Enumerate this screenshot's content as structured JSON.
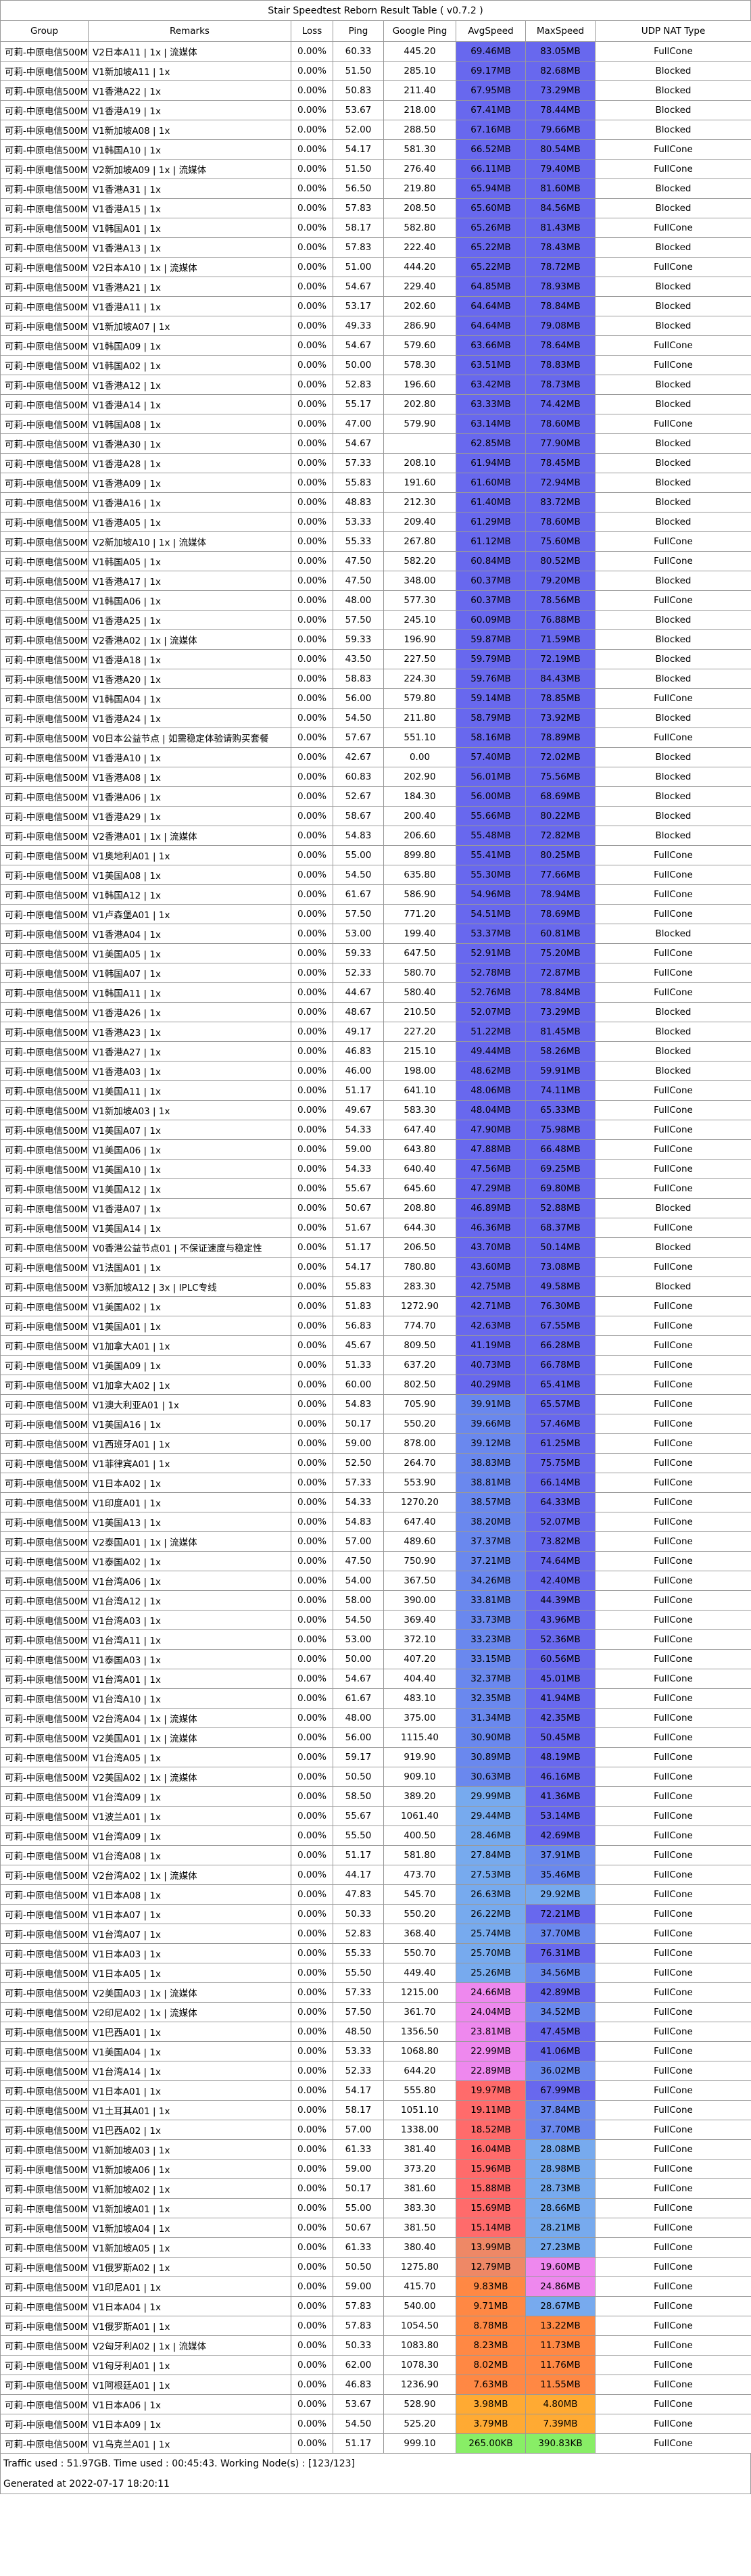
{
  "title": "Stair Speedtest Reborn Result Table ( v0.7.2 )",
  "headers": [
    "Group",
    "Remarks",
    "Loss",
    "Ping",
    "Google Ping",
    "AvgSpeed",
    "MaxSpeed",
    "UDP NAT Type"
  ],
  "colors": {
    "deep_blue": "#6666ee",
    "blue": "#6688ee",
    "light_blue": "#77aaee",
    "pink": "#ee88ee",
    "light_pink": "#eeaaee",
    "salmon": "#ee7777",
    "orange": "#ff8844",
    "green": "#88ee66",
    "orange2": "#ffaa44"
  },
  "rows": [
    [
      "可莉-中原电信500M",
      "V2日本A11 | 1x | 流媒体",
      "0.00%",
      "60.33",
      "445.20",
      "69.46MB",
      "83.05MB",
      "FullCone"
    ],
    [
      "可莉-中原电信500M",
      "V1新加坡A11 | 1x",
      "0.00%",
      "51.50",
      "285.10",
      "69.17MB",
      "82.68MB",
      "Blocked"
    ],
    [
      "可莉-中原电信500M",
      "V1香港A22 | 1x",
      "0.00%",
      "50.83",
      "211.40",
      "67.95MB",
      "73.29MB",
      "Blocked"
    ],
    [
      "可莉-中原电信500M",
      "V1香港A19 | 1x",
      "0.00%",
      "53.67",
      "218.00",
      "67.41MB",
      "78.44MB",
      "Blocked"
    ],
    [
      "可莉-中原电信500M",
      "V1新加坡A08 | 1x",
      "0.00%",
      "52.00",
      "288.50",
      "67.16MB",
      "79.66MB",
      "Blocked"
    ],
    [
      "可莉-中原电信500M",
      "V1韩国A10 | 1x",
      "0.00%",
      "54.17",
      "581.30",
      "66.52MB",
      "80.54MB",
      "FullCone"
    ],
    [
      "可莉-中原电信500M",
      "V2新加坡A09 | 1x | 流媒体",
      "0.00%",
      "51.50",
      "276.40",
      "66.11MB",
      "79.40MB",
      "FullCone"
    ],
    [
      "可莉-中原电信500M",
      "V1香港A31 | 1x",
      "0.00%",
      "56.50",
      "219.80",
      "65.94MB",
      "81.60MB",
      "Blocked"
    ],
    [
      "可莉-中原电信500M",
      "V1香港A15 | 1x",
      "0.00%",
      "57.83",
      "208.50",
      "65.60MB",
      "84.56MB",
      "Blocked"
    ],
    [
      "可莉-中原电信500M",
      "V1韩国A01 | 1x",
      "0.00%",
      "58.17",
      "582.80",
      "65.26MB",
      "81.43MB",
      "FullCone"
    ],
    [
      "可莉-中原电信500M",
      "V1香港A13 | 1x",
      "0.00%",
      "57.83",
      "222.40",
      "65.22MB",
      "78.43MB",
      "Blocked"
    ],
    [
      "可莉-中原电信500M",
      "V2日本A10 | 1x | 流媒体",
      "0.00%",
      "51.00",
      "444.20",
      "65.22MB",
      "78.72MB",
      "FullCone"
    ],
    [
      "可莉-中原电信500M",
      "V1香港A21 | 1x",
      "0.00%",
      "54.67",
      "229.40",
      "64.85MB",
      "78.93MB",
      "Blocked"
    ],
    [
      "可莉-中原电信500M",
      "V1香港A11 | 1x",
      "0.00%",
      "53.17",
      "202.60",
      "64.64MB",
      "78.84MB",
      "Blocked"
    ],
    [
      "可莉-中原电信500M",
      "V1新加坡A07 | 1x",
      "0.00%",
      "49.33",
      "286.90",
      "64.64MB",
      "79.08MB",
      "Blocked"
    ],
    [
      "可莉-中原电信500M",
      "V1韩国A09 | 1x",
      "0.00%",
      "54.67",
      "579.60",
      "63.66MB",
      "78.64MB",
      "FullCone"
    ],
    [
      "可莉-中原电信500M",
      "V1韩国A02 | 1x",
      "0.00%",
      "50.00",
      "578.30",
      "63.51MB",
      "78.83MB",
      "FullCone"
    ],
    [
      "可莉-中原电信500M",
      "V1香港A12 | 1x",
      "0.00%",
      "52.83",
      "196.60",
      "63.42MB",
      "78.73MB",
      "Blocked"
    ],
    [
      "可莉-中原电信500M",
      "V1香港A14 | 1x",
      "0.00%",
      "55.17",
      "202.80",
      "63.33MB",
      "74.42MB",
      "Blocked"
    ],
    [
      "可莉-中原电信500M",
      "V1韩国A08 | 1x",
      "0.00%",
      "47.00",
      "579.90",
      "63.14MB",
      "78.60MB",
      "FullCone"
    ],
    [
      "可莉-中原电信500M",
      "V1香港A30 | 1x",
      "0.00%",
      "54.67",
      "",
      "62.85MB",
      "77.90MB",
      "Blocked"
    ],
    [
      "可莉-中原电信500M",
      "V1香港A28 | 1x",
      "0.00%",
      "57.33",
      "208.10",
      "61.94MB",
      "78.45MB",
      "Blocked"
    ],
    [
      "可莉-中原电信500M",
      "V1香港A09 | 1x",
      "0.00%",
      "55.83",
      "191.60",
      "61.60MB",
      "72.94MB",
      "Blocked"
    ],
    [
      "可莉-中原电信500M",
      "V1香港A16 | 1x",
      "0.00%",
      "48.83",
      "212.30",
      "61.40MB",
      "83.72MB",
      "Blocked"
    ],
    [
      "可莉-中原电信500M",
      "V1香港A05 | 1x",
      "0.00%",
      "53.33",
      "209.40",
      "61.29MB",
      "78.60MB",
      "Blocked"
    ],
    [
      "可莉-中原电信500M",
      "V2新加坡A10 | 1x | 流媒体",
      "0.00%",
      "55.33",
      "267.80",
      "61.12MB",
      "75.60MB",
      "FullCone"
    ],
    [
      "可莉-中原电信500M",
      "V1韩国A05 | 1x",
      "0.00%",
      "47.50",
      "582.20",
      "60.84MB",
      "80.52MB",
      "FullCone"
    ],
    [
      "可莉-中原电信500M",
      "V1香港A17 | 1x",
      "0.00%",
      "47.50",
      "348.00",
      "60.37MB",
      "79.20MB",
      "Blocked"
    ],
    [
      "可莉-中原电信500M",
      "V1韩国A06 | 1x",
      "0.00%",
      "48.00",
      "577.30",
      "60.37MB",
      "78.56MB",
      "FullCone"
    ],
    [
      "可莉-中原电信500M",
      "V1香港A25 | 1x",
      "0.00%",
      "57.50",
      "245.10",
      "60.09MB",
      "76.88MB",
      "Blocked"
    ],
    [
      "可莉-中原电信500M",
      "V2香港A02 | 1x | 流媒体",
      "0.00%",
      "59.33",
      "196.90",
      "59.87MB",
      "71.59MB",
      "Blocked"
    ],
    [
      "可莉-中原电信500M",
      "V1香港A18 | 1x",
      "0.00%",
      "43.50",
      "227.50",
      "59.79MB",
      "72.19MB",
      "Blocked"
    ],
    [
      "可莉-中原电信500M",
      "V1香港A20 | 1x",
      "0.00%",
      "58.83",
      "224.30",
      "59.76MB",
      "84.43MB",
      "Blocked"
    ],
    [
      "可莉-中原电信500M",
      "V1韩国A04 | 1x",
      "0.00%",
      "56.00",
      "579.80",
      "59.14MB",
      "78.85MB",
      "FullCone"
    ],
    [
      "可莉-中原电信500M",
      "V1香港A24 | 1x",
      "0.00%",
      "54.50",
      "211.80",
      "58.79MB",
      "73.92MB",
      "Blocked"
    ],
    [
      "可莉-中原电信500M",
      "V0日本公益节点 | 如需稳定体验请购买套餐",
      "0.00%",
      "57.67",
      "551.10",
      "58.16MB",
      "78.89MB",
      "FullCone"
    ],
    [
      "可莉-中原电信500M",
      "V1香港A10 | 1x",
      "0.00%",
      "42.67",
      "0.00",
      "57.40MB",
      "72.02MB",
      "Blocked"
    ],
    [
      "可莉-中原电信500M",
      "V1香港A08 | 1x",
      "0.00%",
      "60.83",
      "202.90",
      "56.01MB",
      "75.56MB",
      "Blocked"
    ],
    [
      "可莉-中原电信500M",
      "V1香港A06 | 1x",
      "0.00%",
      "52.67",
      "184.30",
      "56.00MB",
      "68.69MB",
      "Blocked"
    ],
    [
      "可莉-中原电信500M",
      "V1香港A29 | 1x",
      "0.00%",
      "58.67",
      "200.40",
      "55.66MB",
      "80.22MB",
      "Blocked"
    ],
    [
      "可莉-中原电信500M",
      "V2香港A01 | 1x | 流媒体",
      "0.00%",
      "54.83",
      "206.60",
      "55.48MB",
      "72.82MB",
      "Blocked"
    ],
    [
      "可莉-中原电信500M",
      "V1奥地利A01 | 1x",
      "0.00%",
      "55.00",
      "899.80",
      "55.41MB",
      "80.25MB",
      "FullCone"
    ],
    [
      "可莉-中原电信500M",
      "V1美国A08 | 1x",
      "0.00%",
      "54.50",
      "635.80",
      "55.30MB",
      "77.66MB",
      "FullCone"
    ],
    [
      "可莉-中原电信500M",
      "V1韩国A12 | 1x",
      "0.00%",
      "61.67",
      "586.90",
      "54.96MB",
      "78.94MB",
      "FullCone"
    ],
    [
      "可莉-中原电信500M",
      "V1卢森堡A01 | 1x",
      "0.00%",
      "57.50",
      "771.20",
      "54.51MB",
      "78.69MB",
      "FullCone"
    ],
    [
      "可莉-中原电信500M",
      "V1香港A04 | 1x",
      "0.00%",
      "53.00",
      "199.40",
      "53.37MB",
      "60.81MB",
      "Blocked"
    ],
    [
      "可莉-中原电信500M",
      "V1美国A05 | 1x",
      "0.00%",
      "59.33",
      "647.50",
      "52.91MB",
      "75.20MB",
      "FullCone"
    ],
    [
      "可莉-中原电信500M",
      "V1韩国A07 | 1x",
      "0.00%",
      "52.33",
      "580.70",
      "52.78MB",
      "72.87MB",
      "FullCone"
    ],
    [
      "可莉-中原电信500M",
      "V1韩国A11 | 1x",
      "0.00%",
      "44.67",
      "580.40",
      "52.76MB",
      "78.84MB",
      "FullCone"
    ],
    [
      "可莉-中原电信500M",
      "V1香港A26 | 1x",
      "0.00%",
      "48.67",
      "210.50",
      "52.07MB",
      "73.29MB",
      "Blocked"
    ],
    [
      "可莉-中原电信500M",
      "V1香港A23 | 1x",
      "0.00%",
      "49.17",
      "227.20",
      "51.22MB",
      "81.45MB",
      "Blocked"
    ],
    [
      "可莉-中原电信500M",
      "V1香港A27 | 1x",
      "0.00%",
      "46.83",
      "215.10",
      "49.44MB",
      "58.26MB",
      "Blocked"
    ],
    [
      "可莉-中原电信500M",
      "V1香港A03 | 1x",
      "0.00%",
      "46.00",
      "198.00",
      "48.62MB",
      "59.91MB",
      "Blocked"
    ],
    [
      "可莉-中原电信500M",
      "V1美国A11 | 1x",
      "0.00%",
      "51.17",
      "641.10",
      "48.06MB",
      "74.11MB",
      "FullCone"
    ],
    [
      "可莉-中原电信500M",
      "V1新加坡A03 | 1x",
      "0.00%",
      "49.67",
      "583.30",
      "48.04MB",
      "65.33MB",
      "FullCone"
    ],
    [
      "可莉-中原电信500M",
      "V1美国A07 | 1x",
      "0.00%",
      "54.33",
      "647.40",
      "47.90MB",
      "75.98MB",
      "FullCone"
    ],
    [
      "可莉-中原电信500M",
      "V1美国A06 | 1x",
      "0.00%",
      "59.00",
      "643.80",
      "47.88MB",
      "66.48MB",
      "FullCone"
    ],
    [
      "可莉-中原电信500M",
      "V1美国A10 | 1x",
      "0.00%",
      "54.33",
      "640.40",
      "47.56MB",
      "69.25MB",
      "FullCone"
    ],
    [
      "可莉-中原电信500M",
      "V1美国A12 | 1x",
      "0.00%",
      "55.67",
      "645.60",
      "47.29MB",
      "69.80MB",
      "FullCone"
    ],
    [
      "可莉-中原电信500M",
      "V1香港A07 | 1x",
      "0.00%",
      "50.67",
      "208.80",
      "46.89MB",
      "52.88MB",
      "Blocked"
    ],
    [
      "可莉-中原电信500M",
      "V1美国A14 | 1x",
      "0.00%",
      "51.67",
      "644.30",
      "46.36MB",
      "68.37MB",
      "FullCone"
    ],
    [
      "可莉-中原电信500M",
      "V0香港公益节点01 | 不保证速度与稳定性",
      "0.00%",
      "51.17",
      "206.50",
      "43.70MB",
      "50.14MB",
      "Blocked"
    ],
    [
      "可莉-中原电信500M",
      "V1法国A01 | 1x",
      "0.00%",
      "54.17",
      "780.80",
      "43.60MB",
      "73.08MB",
      "FullCone"
    ],
    [
      "可莉-中原电信500M",
      "V3新加坡A12 | 3x | IPLC专线",
      "0.00%",
      "55.83",
      "283.30",
      "42.75MB",
      "49.58MB",
      "Blocked"
    ],
    [
      "可莉-中原电信500M",
      "V1美国A02 | 1x",
      "0.00%",
      "51.83",
      "1272.90",
      "42.71MB",
      "76.30MB",
      "FullCone"
    ],
    [
      "可莉-中原电信500M",
      "V1美国A01 | 1x",
      "0.00%",
      "56.83",
      "774.70",
      "42.63MB",
      "67.55MB",
      "FullCone"
    ],
    [
      "可莉-中原电信500M",
      "V1加拿大A01 | 1x",
      "0.00%",
      "45.67",
      "809.50",
      "41.19MB",
      "66.28MB",
      "FullCone"
    ],
    [
      "可莉-中原电信500M",
      "V1美国A09 | 1x",
      "0.00%",
      "51.33",
      "637.20",
      "40.73MB",
      "66.78MB",
      "FullCone"
    ],
    [
      "可莉-中原电信500M",
      "V1加拿大A02 | 1x",
      "0.00%",
      "60.00",
      "802.50",
      "40.29MB",
      "65.41MB",
      "FullCone"
    ],
    [
      "可莉-中原电信500M",
      "V1澳大利亚A01 | 1x",
      "0.00%",
      "54.83",
      "705.90",
      "39.91MB",
      "65.57MB",
      "FullCone"
    ],
    [
      "可莉-中原电信500M",
      "V1美国A16 | 1x",
      "0.00%",
      "50.17",
      "550.20",
      "39.66MB",
      "57.46MB",
      "FullCone"
    ],
    [
      "可莉-中原电信500M",
      "V1西班牙A01 | 1x",
      "0.00%",
      "59.00",
      "878.00",
      "39.12MB",
      "61.25MB",
      "FullCone"
    ],
    [
      "可莉-中原电信500M",
      "V1菲律宾A01 | 1x",
      "0.00%",
      "52.50",
      "264.70",
      "38.83MB",
      "75.75MB",
      "FullCone"
    ],
    [
      "可莉-中原电信500M",
      "V1日本A02 | 1x",
      "0.00%",
      "57.33",
      "553.90",
      "38.81MB",
      "66.14MB",
      "FullCone"
    ],
    [
      "可莉-中原电信500M",
      "V1印度A01 | 1x",
      "0.00%",
      "54.33",
      "1270.20",
      "38.57MB",
      "64.33MB",
      "FullCone"
    ],
    [
      "可莉-中原电信500M",
      "V1美国A13 | 1x",
      "0.00%",
      "54.83",
      "647.40",
      "38.20MB",
      "52.07MB",
      "FullCone"
    ],
    [
      "可莉-中原电信500M",
      "V2泰国A01 | 1x | 流媒体",
      "0.00%",
      "57.00",
      "489.60",
      "37.37MB",
      "73.82MB",
      "FullCone"
    ],
    [
      "可莉-中原电信500M",
      "V1泰国A02 | 1x",
      "0.00%",
      "47.50",
      "750.90",
      "37.21MB",
      "74.64MB",
      "FullCone"
    ],
    [
      "可莉-中原电信500M",
      "V1台湾A06 | 1x",
      "0.00%",
      "54.00",
      "367.50",
      "34.26MB",
      "42.40MB",
      "FullCone"
    ],
    [
      "可莉-中原电信500M",
      "V1台湾A12 | 1x",
      "0.00%",
      "58.00",
      "390.00",
      "33.81MB",
      "44.39MB",
      "FullCone"
    ],
    [
      "可莉-中原电信500M",
      "V1台湾A03 | 1x",
      "0.00%",
      "54.50",
      "369.40",
      "33.73MB",
      "43.96MB",
      "FullCone"
    ],
    [
      "可莉-中原电信500M",
      "V1台湾A11 | 1x",
      "0.00%",
      "53.00",
      "372.10",
      "33.23MB",
      "52.36MB",
      "FullCone"
    ],
    [
      "可莉-中原电信500M",
      "V1泰国A03 | 1x",
      "0.00%",
      "50.00",
      "407.20",
      "33.15MB",
      "60.56MB",
      "FullCone"
    ],
    [
      "可莉-中原电信500M",
      "V1台湾A01 | 1x",
      "0.00%",
      "54.67",
      "404.40",
      "32.37MB",
      "45.01MB",
      "FullCone"
    ],
    [
      "可莉-中原电信500M",
      "V1台湾A10 | 1x",
      "0.00%",
      "61.67",
      "483.10",
      "32.35MB",
      "41.94MB",
      "FullCone"
    ],
    [
      "可莉-中原电信500M",
      "V2台湾A04 | 1x | 流媒体",
      "0.00%",
      "48.00",
      "375.00",
      "31.34MB",
      "42.35MB",
      "FullCone"
    ],
    [
      "可莉-中原电信500M",
      "V2美国A01 | 1x | 流媒体",
      "0.00%",
      "56.00",
      "1115.40",
      "30.90MB",
      "50.45MB",
      "FullCone"
    ],
    [
      "可莉-中原电信500M",
      "V1台湾A05 | 1x",
      "0.00%",
      "59.17",
      "919.90",
      "30.89MB",
      "48.19MB",
      "FullCone"
    ],
    [
      "可莉-中原电信500M",
      "V2美国A02 | 1x | 流媒体",
      "0.00%",
      "50.50",
      "909.10",
      "30.63MB",
      "46.16MB",
      "FullCone"
    ],
    [
      "可莉-中原电信500M",
      "V1台湾A09 | 1x",
      "0.00%",
      "58.50",
      "389.20",
      "29.99MB",
      "41.36MB",
      "FullCone"
    ],
    [
      "可莉-中原电信500M",
      "V1波兰A01 | 1x",
      "0.00%",
      "55.67",
      "1061.40",
      "29.44MB",
      "53.14MB",
      "FullCone"
    ],
    [
      "可莉-中原电信500M",
      "V1台湾A09 | 1x",
      "0.00%",
      "55.50",
      "400.50",
      "28.46MB",
      "42.69MB",
      "FullCone"
    ],
    [
      "可莉-中原电信500M",
      "V1台湾A08 | 1x",
      "0.00%",
      "51.17",
      "581.80",
      "27.84MB",
      "37.91MB",
      "FullCone"
    ],
    [
      "可莉-中原电信500M",
      "V2台湾A02 | 1x | 流媒体",
      "0.00%",
      "44.17",
      "473.70",
      "27.53MB",
      "35.46MB",
      "FullCone"
    ],
    [
      "可莉-中原电信500M",
      "V1日本A08 | 1x",
      "0.00%",
      "47.83",
      "545.70",
      "26.63MB",
      "29.92MB",
      "FullCone"
    ],
    [
      "可莉-中原电信500M",
      "V1日本A07 | 1x",
      "0.00%",
      "50.33",
      "550.20",
      "26.22MB",
      "72.21MB",
      "FullCone"
    ],
    [
      "可莉-中原电信500M",
      "V1台湾A07 | 1x",
      "0.00%",
      "52.83",
      "368.40",
      "25.74MB",
      "37.70MB",
      "FullCone"
    ],
    [
      "可莉-中原电信500M",
      "V1日本A03 | 1x",
      "0.00%",
      "55.33",
      "550.70",
      "25.70MB",
      "76.31MB",
      "FullCone"
    ],
    [
      "可莉-中原电信500M",
      "V1日本A05 | 1x",
      "0.00%",
      "55.50",
      "449.40",
      "25.26MB",
      "34.56MB",
      "FullCone"
    ],
    [
      "可莉-中原电信500M",
      "V2美国A03 | 1x | 流媒体",
      "0.00%",
      "57.33",
      "1215.00",
      "24.66MB",
      "42.89MB",
      "FullCone"
    ],
    [
      "可莉-中原电信500M",
      "V2印尼A02 | 1x | 流媒体 ",
      "0.00%",
      "57.50",
      "361.70",
      "24.04MB",
      "34.52MB",
      "FullCone"
    ],
    [
      "可莉-中原电信500M",
      "V1巴西A01 | 1x",
      "0.00%",
      "48.50",
      "1356.50",
      "23.81MB",
      "47.45MB",
      "FullCone"
    ],
    [
      "可莉-中原电信500M",
      "V1美国A04 | 1x",
      "0.00%",
      "53.33",
      "1068.80",
      "22.99MB",
      "41.06MB",
      "FullCone"
    ],
    [
      "可莉-中原电信500M",
      "V1台湾A14 | 1x",
      "0.00%",
      "52.33",
      "644.20",
      "22.89MB",
      "36.02MB",
      "FullCone"
    ],
    [
      "可莉-中原电信500M",
      "V1日本A01 | 1x",
      "0.00%",
      "54.17",
      "555.80",
      "19.97MB",
      "67.99MB",
      "FullCone"
    ],
    [
      "可莉-中原电信500M",
      "V1土耳其A01 | 1x",
      "0.00%",
      "58.17",
      "1051.10",
      "19.11MB",
      "37.84MB",
      "FullCone"
    ],
    [
      "可莉-中原电信500M",
      "V1巴西A02 | 1x",
      "0.00%",
      "57.00",
      "1338.00",
      "18.52MB",
      "37.70MB",
      "FullCone"
    ],
    [
      "可莉-中原电信500M",
      "V1新加坡A03 | 1x",
      "0.00%",
      "61.33",
      "381.40",
      "16.04MB",
      "28.08MB",
      "FullCone"
    ],
    [
      "可莉-中原电信500M",
      "V1新加坡A06 | 1x",
      "0.00%",
      "59.00",
      "373.20",
      "15.96MB",
      "28.98MB",
      "FullCone"
    ],
    [
      "可莉-中原电信500M",
      "V1新加坡A02 | 1x",
      "0.00%",
      "50.17",
      "381.60",
      "15.88MB",
      "28.73MB",
      "FullCone"
    ],
    [
      "可莉-中原电信500M",
      "V1新加坡A01 | 1x",
      "0.00%",
      "55.00",
      "383.30",
      "15.69MB",
      "28.66MB",
      "FullCone"
    ],
    [
      "可莉-中原电信500M",
      "V1新加坡A04 | 1x",
      "0.00%",
      "50.67",
      "381.50",
      "15.14MB",
      "28.21MB",
      "FullCone"
    ],
    [
      "可莉-中原电信500M",
      "V1新加坡A05 | 1x",
      "0.00%",
      "61.33",
      "380.40",
      "13.99MB",
      "27.23MB",
      "FullCone"
    ],
    [
      "可莉-中原电信500M",
      "V1俄罗斯A02 | 1x",
      "0.00%",
      "50.50",
      "1275.80",
      "12.79MB",
      "19.60MB",
      "FullCone"
    ],
    [
      "可莉-中原电信500M",
      "V1印尼A01 | 1x",
      "0.00%",
      "59.00",
      "415.70",
      "9.83MB",
      "24.86MB",
      "FullCone"
    ],
    [
      "可莉-中原电信500M",
      "V1日本A04 | 1x",
      "0.00%",
      "57.83",
      "540.00",
      "9.71MB",
      "28.67MB",
      "FullCone"
    ],
    [
      "可莉-中原电信500M",
      "V1俄罗斯A01 | 1x",
      "0.00%",
      "57.83",
      "1054.50",
      "8.78MB",
      "13.22MB",
      "FullCone"
    ],
    [
      "可莉-中原电信500M",
      "V2匈牙利A02 | 1x | 流媒体",
      "0.00%",
      "50.33",
      "1083.80",
      "8.23MB",
      "11.73MB",
      "FullCone"
    ],
    [
      "可莉-中原电信500M",
      "V1匈牙利A01 | 1x",
      "0.00%",
      "62.00",
      "1078.30",
      "8.02MB",
      "11.76MB",
      "FullCone"
    ],
    [
      "可莉-中原电信500M",
      "V1阿根廷A01 | 1x",
      "0.00%",
      "46.83",
      "1236.90",
      "7.63MB",
      "11.55MB",
      "FullCone"
    ],
    [
      "可莉-中原电信500M",
      "V1日本A06 | 1x",
      "0.00%",
      "53.67",
      "528.90",
      "3.98MB",
      "4.80MB",
      "FullCone"
    ],
    [
      "可莉-中原电信500M",
      "V1日本A09 | 1x",
      "0.00%",
      "54.50",
      "525.20",
      "3.79MB",
      "7.39MB",
      "FullCone"
    ],
    [
      "可莉-中原电信500M",
      "V1乌克兰A01 | 1x",
      "0.00%",
      "51.17",
      "999.10",
      "265.00KB",
      "390.83KB",
      "FullCone"
    ]
  ],
  "footer_traffic": "Traffic used : 51.97GB. Time used : 00:45:43. Working Node(s) : [123/123]",
  "footer_generated": "Generated at 2022-07-17 18:20:11"
}
